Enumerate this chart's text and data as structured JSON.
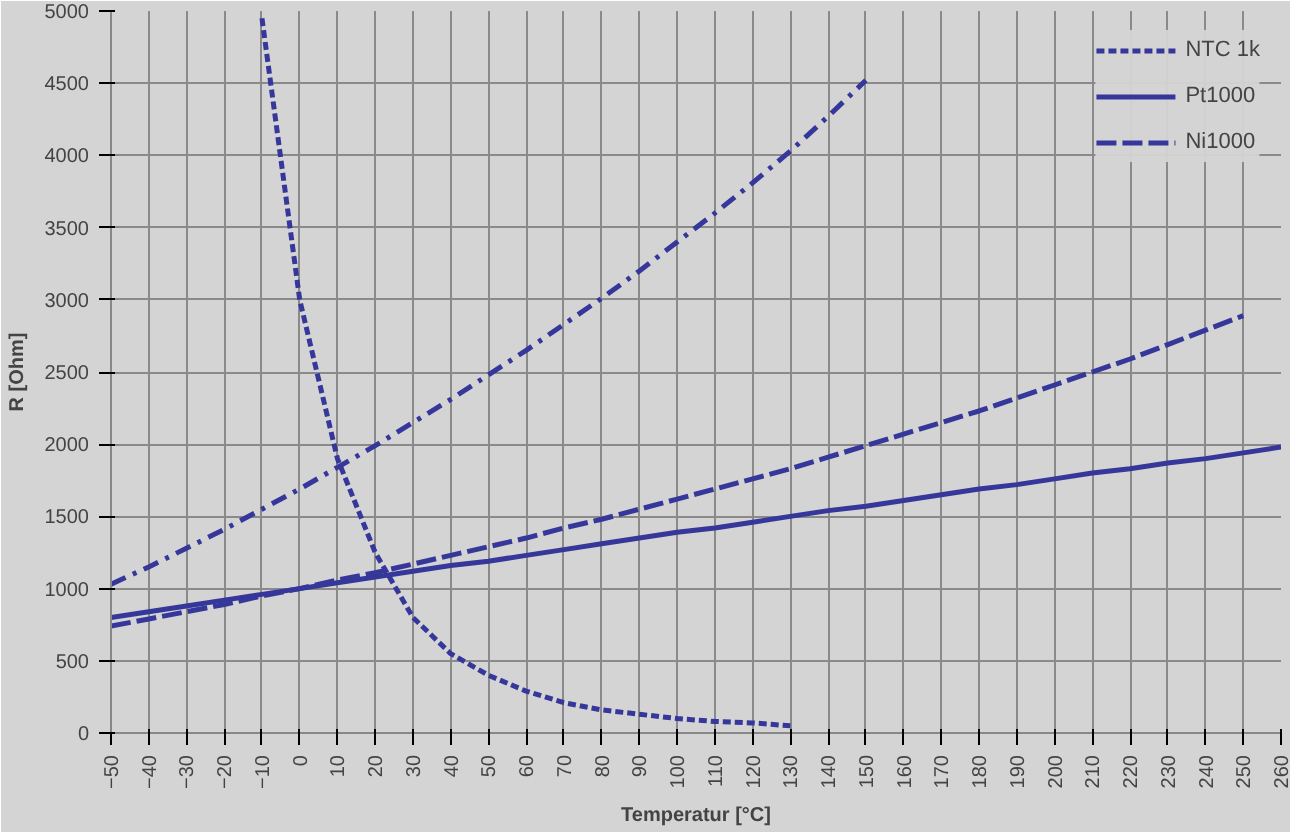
{
  "chart_data": {
    "type": "line",
    "xlabel": "Temperatur [°C]",
    "ylabel": "R [Ohm]",
    "xlim": [
      -50,
      260
    ],
    "xticks": [
      -50,
      -40,
      -30,
      -20,
      -10,
      0,
      10,
      20,
      30,
      40,
      50,
      60,
      70,
      80,
      90,
      100,
      110,
      120,
      130,
      140,
      150,
      160,
      170,
      180,
      190,
      200,
      210,
      220,
      230,
      240,
      250,
      260
    ],
    "ylim": [
      0,
      5000
    ],
    "yticks": [
      0,
      500,
      1000,
      1500,
      2000,
      2500,
      3000,
      3500,
      4000,
      4500,
      5000
    ],
    "grid": true,
    "legend": "top right",
    "series": [
      {
        "name": "NTC 1k",
        "color": "#35379a",
        "line_style": "dashed",
        "x": [
          -10,
          0,
          10,
          20,
          30,
          40,
          50,
          60,
          70,
          80,
          90,
          100,
          110,
          120,
          130
        ],
        "values": [
          4950,
          3000,
          1900,
          1250,
          800,
          550,
          400,
          290,
          210,
          160,
          130,
          100,
          80,
          70,
          50
        ]
      },
      {
        "name": "Pt1000",
        "color": "#35379a",
        "line_style": "solid",
        "x": [
          -50,
          -40,
          -30,
          -20,
          -10,
          0,
          10,
          20,
          30,
          40,
          50,
          60,
          70,
          80,
          90,
          100,
          110,
          120,
          130,
          140,
          150,
          160,
          170,
          180,
          190,
          200,
          210,
          220,
          230,
          240,
          250,
          260
        ],
        "values": [
          800,
          840,
          880,
          920,
          960,
          1000,
          1040,
          1080,
          1120,
          1160,
          1190,
          1230,
          1270,
          1310,
          1350,
          1390,
          1420,
          1460,
          1500,
          1540,
          1570,
          1610,
          1650,
          1690,
          1720,
          1760,
          1800,
          1830,
          1870,
          1900,
          1940,
          1980
        ]
      },
      {
        "name": "Ni1000",
        "color": "#35379a",
        "line_style": "longdash",
        "x": [
          -50,
          -40,
          -30,
          -20,
          -10,
          0,
          10,
          20,
          30,
          40,
          50,
          60,
          70,
          80,
          90,
          100,
          110,
          120,
          130,
          140,
          150,
          160,
          170,
          180,
          190,
          200,
          210,
          220,
          230,
          240,
          250
        ],
        "values": [
          740,
          790,
          840,
          890,
          950,
          1000,
          1060,
          1110,
          1170,
          1230,
          1290,
          1350,
          1420,
          1480,
          1550,
          1620,
          1690,
          1760,
          1830,
          1910,
          1990,
          2070,
          2150,
          2230,
          2320,
          2410,
          2500,
          2590,
          2690,
          2790,
          2890
        ]
      },
      {
        "color": "#35379a",
        "line_style": "dashdot",
        "x": [
          -50,
          -40,
          -30,
          -20,
          -10,
          0,
          10,
          20,
          30,
          40,
          50,
          60,
          70,
          80,
          90,
          100,
          110,
          120,
          130,
          140,
          150
        ],
        "values": [
          1030,
          1150,
          1280,
          1410,
          1550,
          1690,
          1840,
          1990,
          2150,
          2310,
          2480,
          2650,
          2830,
          3010,
          3200,
          3400,
          3600,
          3810,
          4030,
          4270,
          4520
        ]
      }
    ]
  }
}
